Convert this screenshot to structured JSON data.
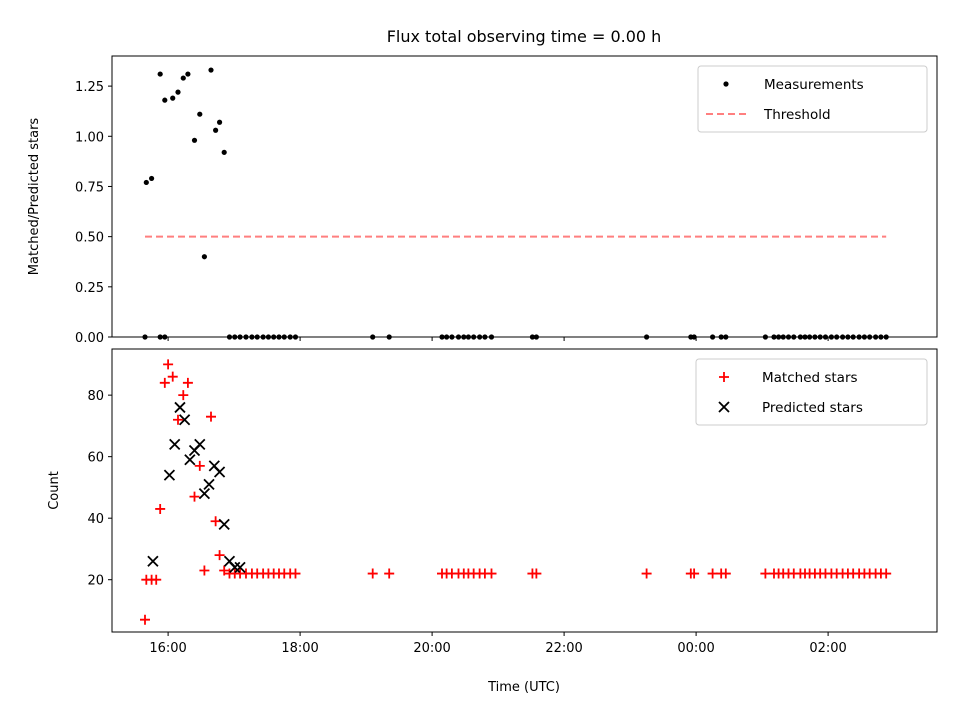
{
  "chart_data": {
    "title": "Flux total observing time = 0.00 h",
    "xlabel": "Time (UTC)",
    "x_units": "hours since 16:00 UTC",
    "xlim": [
      -0.85,
      11.65
    ],
    "xticks": [
      0,
      2,
      4,
      6,
      8,
      10
    ],
    "xtick_labels": [
      "16:00",
      "18:00",
      "20:00",
      "22:00",
      "00:00",
      "02:00"
    ],
    "panels": [
      {
        "type": "scatter",
        "ylabel": "Matched/Predicted stars",
        "ylim": [
          0,
          1.4
        ],
        "yticks": [
          0,
          0.25,
          0.5,
          0.75,
          1.0,
          1.25
        ],
        "ytick_labels": [
          "0.00",
          "0.25",
          "0.50",
          "0.75",
          "1.00",
          "1.25"
        ],
        "legend_position": "top-right",
        "series": [
          {
            "name": "Measurements",
            "marker": "dot",
            "color": "#000000",
            "x": [
              -0.33,
              -0.25,
              -0.12,
              -0.05,
              0.07,
              0.15,
              0.23,
              0.3,
              0.4,
              0.48,
              0.55,
              0.65,
              0.72,
              0.78,
              0.85,
              0.93,
              1.01,
              1.09,
              -0.35,
              -0.12,
              -0.05,
              1.18,
              1.27,
              1.35,
              1.44,
              1.52,
              1.6,
              1.68,
              1.76,
              1.85,
              1.93,
              3.1,
              3.35,
              4.15,
              4.22,
              4.3,
              4.4,
              4.48,
              4.55,
              4.63,
              4.72,
              4.8,
              4.9,
              5.52,
              5.58,
              7.25,
              7.92,
              7.97,
              8.25,
              8.38,
              8.45,
              9.05,
              9.18,
              9.25,
              9.32,
              9.4,
              9.48,
              9.58,
              9.65,
              9.72,
              9.8,
              9.88,
              9.96,
              10.05,
              10.13,
              10.22,
              10.3,
              10.38,
              10.47,
              10.55,
              10.63,
              10.72,
              10.8,
              10.88
            ],
            "y": [
              0.77,
              0.79,
              1.31,
              1.18,
              1.19,
              1.22,
              1.29,
              1.31,
              0.98,
              1.11,
              0.4,
              1.33,
              1.03,
              1.07,
              0.92,
              0.0,
              0.0,
              0.0,
              0.0,
              0.0,
              0.0,
              0.0,
              0.0,
              0.0,
              0.0,
              0.0,
              0.0,
              0.0,
              0.0,
              0.0,
              0.0,
              0.0,
              0.0,
              0.0,
              0.0,
              0.0,
              0.0,
              0.0,
              0.0,
              0.0,
              0.0,
              0.0,
              0.0,
              0.0,
              0.0,
              0.0,
              0.0,
              0.0,
              0.0,
              0.0,
              0.0,
              0.0,
              0.0,
              0.0,
              0.0,
              0.0,
              0.0,
              0.0,
              0.0,
              0.0,
              0.0,
              0.0,
              0.0,
              0.0,
              0.0,
              0.0,
              0.0,
              0.0,
              0.0,
              0.0,
              0.0,
              0.0,
              0.0,
              0.0
            ]
          },
          {
            "name": "Threshold",
            "marker": "dashed-line",
            "color": "#ff7f7f",
            "x": [
              -0.35,
              10.88
            ],
            "y": [
              0.5,
              0.5
            ]
          }
        ]
      },
      {
        "type": "scatter",
        "ylabel": "Count",
        "ylim": [
          3,
          95
        ],
        "yticks": [
          20,
          40,
          60,
          80
        ],
        "ytick_labels": [
          "20",
          "40",
          "60",
          "80"
        ],
        "legend_position": "top-right",
        "series": [
          {
            "name": "Matched stars",
            "marker": "plus",
            "color": "#ff0000",
            "x": [
              -0.33,
              -0.25,
              -0.18,
              -0.12,
              -0.05,
              0.0,
              0.07,
              0.15,
              0.23,
              0.3,
              0.4,
              0.48,
              0.55,
              0.65,
              0.72,
              0.78,
              0.85,
              0.93,
              1.01,
              1.09,
              1.18,
              1.27,
              1.35,
              1.44,
              1.52,
              1.6,
              1.68,
              1.76,
              1.85,
              1.93,
              3.1,
              3.35,
              4.15,
              4.22,
              4.3,
              4.4,
              4.48,
              4.55,
              4.63,
              4.72,
              4.8,
              4.9,
              5.52,
              5.58,
              7.25,
              7.92,
              7.97,
              8.25,
              8.38,
              8.45,
              9.05,
              9.18,
              9.25,
              9.32,
              9.4,
              9.48,
              9.58,
              9.65,
              9.72,
              9.8,
              9.88,
              9.96,
              10.05,
              10.13,
              10.22,
              10.3,
              10.38,
              10.47,
              10.55,
              10.63,
              10.72,
              10.8,
              10.88,
              -0.35
            ],
            "y": [
              20,
              20,
              20,
              43,
              84,
              90,
              86,
              72,
              80,
              84,
              47,
              57,
              23,
              73,
              39,
              28,
              23,
              22,
              22,
              22,
              22,
              22,
              22,
              22,
              22,
              22,
              22,
              22,
              22,
              22,
              22,
              22,
              22,
              22,
              22,
              22,
              22,
              22,
              22,
              22,
              22,
              22,
              22,
              22,
              22,
              22,
              22,
              22,
              22,
              22,
              22,
              22,
              22,
              22,
              22,
              22,
              22,
              22,
              22,
              22,
              22,
              22,
              22,
              22,
              22,
              22,
              22,
              22,
              22,
              22,
              22,
              22,
              22,
              7
            ]
          },
          {
            "name": "Predicted stars",
            "marker": "x",
            "color": "#000000",
            "x": [
              -0.23,
              0.02,
              0.1,
              0.18,
              0.25,
              0.33,
              0.4,
              0.48,
              0.55,
              0.62,
              0.7,
              0.78,
              0.85,
              0.93,
              1.01,
              1.09
            ],
            "y": [
              26,
              54,
              64,
              76,
              72,
              59,
              62,
              64,
              48,
              51,
              57,
              55,
              38,
              26,
              24,
              24
            ]
          }
        ]
      }
    ]
  }
}
